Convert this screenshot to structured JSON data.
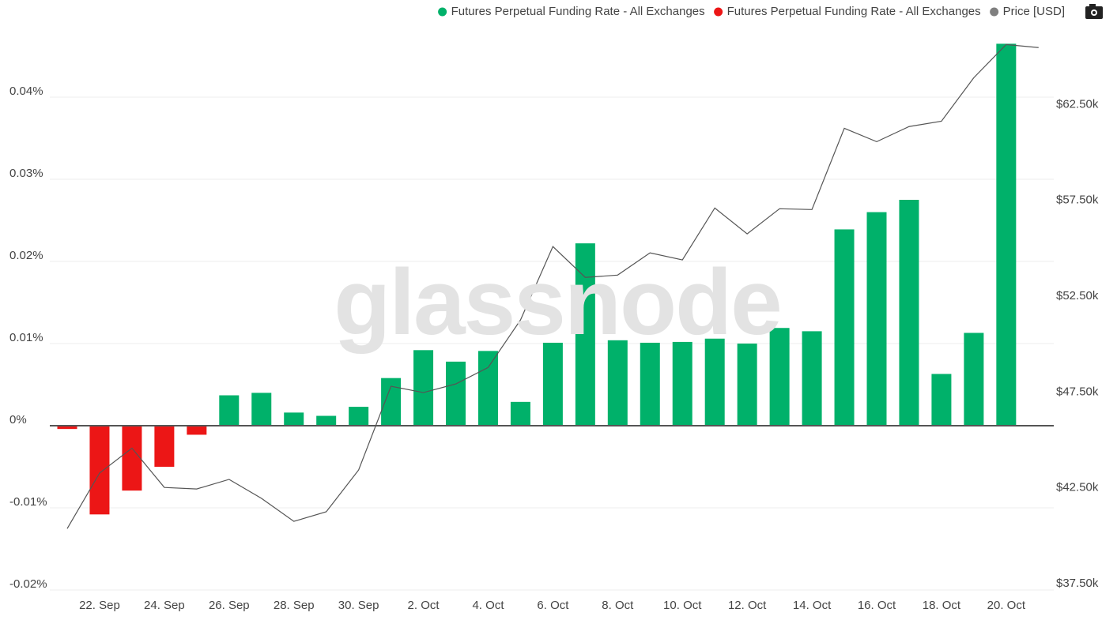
{
  "chart_data": {
    "type": "bar",
    "watermark": "glassnode",
    "categories": [
      null,
      "22. Sep",
      null,
      "24. Sep",
      null,
      "26. Sep",
      null,
      "28. Sep",
      null,
      "30. Sep",
      null,
      "2. Oct",
      null,
      "4. Oct",
      null,
      "6. Oct",
      null,
      "8. Oct",
      null,
      "10. Oct",
      null,
      "12. Oct",
      null,
      "14. Oct",
      null,
      "16. Oct",
      null,
      "18. Oct",
      null,
      "20. Oct",
      null
    ],
    "series": [
      {
        "name": "Futures Perpetual Funding Rate - All Exchanges",
        "color": "#00b16a",
        "values": [
          null,
          null,
          null,
          null,
          null,
          0.0037,
          0.004,
          0.0016,
          0.0012,
          0.0023,
          0.0058,
          0.0092,
          0.0078,
          0.0091,
          0.0029,
          0.0101,
          0.0222,
          0.0104,
          0.0101,
          0.0102,
          0.0106,
          0.01,
          0.0119,
          0.0115,
          0.0239,
          0.026,
          0.0275,
          0.0063,
          0.0113,
          0.0465,
          null
        ]
      },
      {
        "name": "Futures Perpetual Funding Rate - All Exchanges",
        "color": "#ec1616",
        "values": [
          -0.0004,
          -0.0108,
          -0.0079,
          -0.005,
          -0.0011,
          null,
          null,
          null,
          null,
          null,
          null,
          null,
          null,
          null,
          null,
          null,
          null,
          null,
          null,
          null,
          null,
          null,
          null,
          null,
          null,
          null,
          null,
          null,
          null,
          null,
          null
        ]
      },
      {
        "name": "Price [USD]",
        "color": "#7f7f7f",
        "type": "line",
        "axis": "y2",
        "values": [
          40700,
          43600,
          44900,
          42850,
          42770,
          43270,
          42280,
          41080,
          41580,
          43760,
          48130,
          47800,
          48250,
          49110,
          51590,
          55420,
          53810,
          53930,
          55090,
          54720,
          57430,
          56080,
          57390,
          57350,
          61590,
          60890,
          61680,
          61960,
          64230,
          65960,
          65800
        ]
      }
    ],
    "ylim": [
      -0.02,
      0.05
    ],
    "yticks": [
      {
        "value": -0.02,
        "label": "-0.02%"
      },
      {
        "value": -0.01,
        "label": "-0.01%"
      },
      {
        "value": 0,
        "label": "0%"
      },
      {
        "value": 0.01,
        "label": "0.01%"
      },
      {
        "value": 0.02,
        "label": "0.02%"
      },
      {
        "value": 0.03,
        "label": "0.03%"
      },
      {
        "value": 0.04,
        "label": "0.04%"
      }
    ],
    "y2lim": [
      37500,
      67500
    ],
    "y2ticks": [
      {
        "value": 37500,
        "label": "$37.50k"
      },
      {
        "value": 42500,
        "label": "$42.50k"
      },
      {
        "value": 47500,
        "label": "$47.50k"
      },
      {
        "value": 52500,
        "label": "$52.50k"
      },
      {
        "value": 57500,
        "label": "$57.50k"
      },
      {
        "value": 62500,
        "label": "$62.50k"
      }
    ],
    "grid": true
  }
}
